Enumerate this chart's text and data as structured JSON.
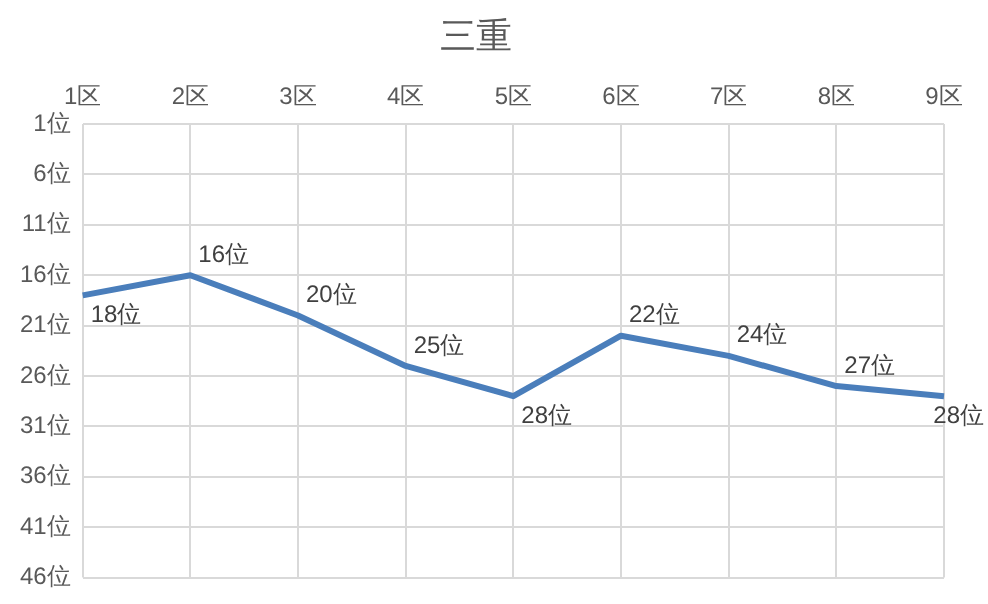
{
  "chart_data": {
    "type": "line",
    "title": "三重",
    "categories": [
      "1区",
      "2区",
      "3区",
      "4区",
      "5区",
      "6区",
      "7区",
      "8区",
      "9区"
    ],
    "series": [
      {
        "color": "#4a7ebb",
        "values": [
          18,
          16,
          20,
          25,
          28,
          22,
          24,
          27,
          28
        ],
        "value_labels": [
          "18位",
          "16位",
          "20位",
          "25位",
          "28位",
          "22位",
          "24位",
          "27位",
          "28位"
        ]
      }
    ],
    "ylim": [
      46,
      1
    ],
    "yticks": [
      {
        "value": 1,
        "label": "1位"
      },
      {
        "value": 6,
        "label": "6位"
      },
      {
        "value": 11,
        "label": "11位"
      },
      {
        "value": 16,
        "label": "16位"
      },
      {
        "value": 21,
        "label": "21位"
      },
      {
        "value": 26,
        "label": "26位"
      },
      {
        "value": 31,
        "label": "31位"
      },
      {
        "value": 36,
        "label": "36位"
      },
      {
        "value": 41,
        "label": "41位"
      },
      {
        "value": 46,
        "label": "46位"
      }
    ],
    "grid": true,
    "legend": false,
    "marker": "none",
    "line_style": "solid"
  }
}
